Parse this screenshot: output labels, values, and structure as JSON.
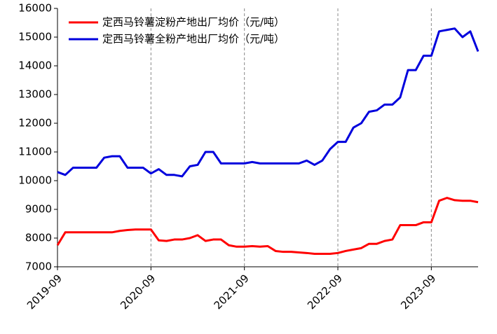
{
  "chart_data": {
    "type": "line",
    "x": [
      "2019-09",
      "2019-10",
      "2019-11",
      "2019-12",
      "2020-01",
      "2020-02",
      "2020-03",
      "2020-04",
      "2020-05",
      "2020-06",
      "2020-07",
      "2020-08",
      "2020-09",
      "2020-10",
      "2020-11",
      "2020-12",
      "2021-01",
      "2021-02",
      "2021-03",
      "2021-04",
      "2021-05",
      "2021-06",
      "2021-07",
      "2021-08",
      "2021-09",
      "2021-10",
      "2021-11",
      "2021-12",
      "2022-01",
      "2022-02",
      "2022-03",
      "2022-04",
      "2022-05",
      "2022-06",
      "2022-07",
      "2022-08",
      "2022-09",
      "2022-10",
      "2022-11",
      "2022-12",
      "2023-01",
      "2023-02",
      "2023-03",
      "2023-04",
      "2023-05",
      "2023-06",
      "2023-07",
      "2023-08",
      "2023-09",
      "2023-10",
      "2023-11",
      "2023-12",
      "2024-01",
      "2024-02",
      "2024-03"
    ],
    "series": [
      {
        "name": "定西马铃薯淀粉产地出厂均价（元/吨）",
        "color": "#ff0000",
        "values": [
          7750,
          8200,
          8200,
          8200,
          8200,
          8200,
          8200,
          8200,
          8250,
          8280,
          8300,
          8300,
          8300,
          7920,
          7900,
          7950,
          7950,
          8000,
          8100,
          7900,
          7950,
          7950,
          7750,
          7700,
          7700,
          7720,
          7700,
          7720,
          7550,
          7520,
          7520,
          7500,
          7480,
          7450,
          7450,
          7450,
          7480,
          7550,
          7600,
          7650,
          7800,
          7800,
          7900,
          7950,
          8450,
          8450,
          8450,
          8550,
          8550,
          9300,
          9400,
          9320,
          9300,
          9300,
          9250
        ]
      },
      {
        "name": "定西马铃薯全粉产地出厂均价（元/吨）",
        "color": "#0000dd",
        "values": [
          10300,
          10200,
          10450,
          10450,
          10450,
          10450,
          10800,
          10850,
          10850,
          10450,
          10450,
          10450,
          10250,
          10400,
          10200,
          10200,
          10150,
          10500,
          10550,
          11000,
          11000,
          10600,
          10600,
          10600,
          10600,
          10650,
          10600,
          10600,
          10600,
          10600,
          10600,
          10600,
          10700,
          10550,
          10700,
          11100,
          11350,
          11350,
          11850,
          12000,
          12400,
          12450,
          12650,
          12650,
          12900,
          13850,
          13850,
          14350,
          14350,
          15200,
          15250,
          15300,
          15000,
          15200,
          14500
        ]
      }
    ],
    "xlim": [
      "2019-09",
      "2024-03"
    ],
    "xticks": [
      "2019-09",
      "2020-09",
      "2021-09",
      "2022-09",
      "2023-09"
    ],
    "ylim": [
      7000,
      16000
    ],
    "yticks": [
      7000,
      8000,
      9000,
      10000,
      11000,
      12000,
      13000,
      14000,
      15000,
      16000
    ],
    "grid": "x",
    "legend": "upper left"
  }
}
